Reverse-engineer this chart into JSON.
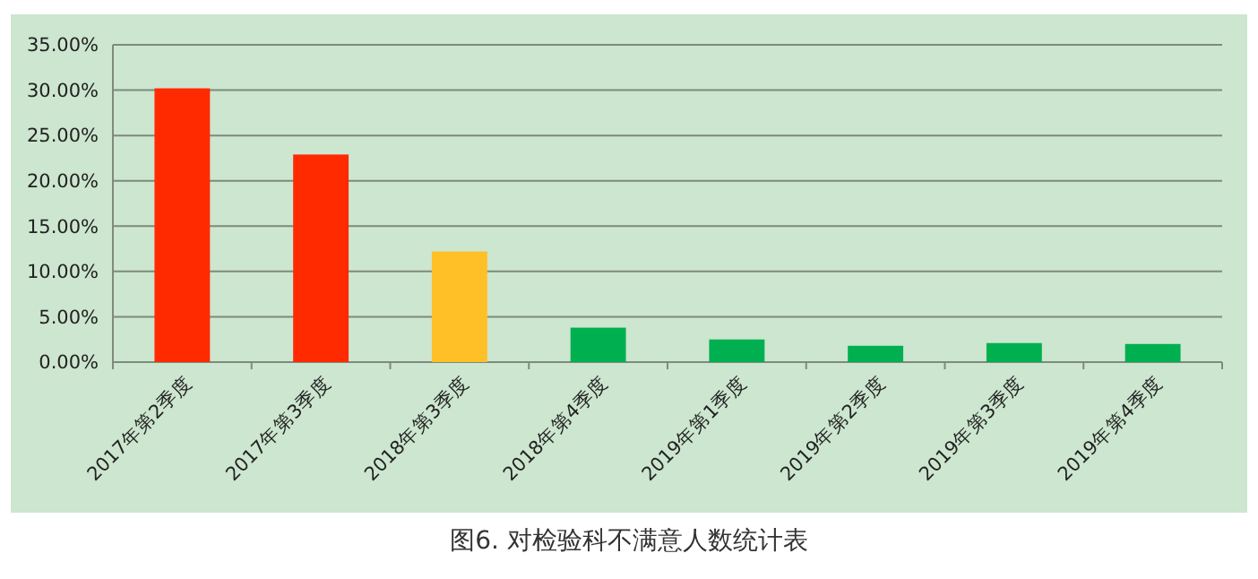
{
  "chart_data": {
    "type": "bar",
    "title": "图6. 对检验科不满意人数统计表",
    "categories": [
      "2017年第2季度",
      "2017年第3季度",
      "2018年第3季度",
      "2018年第4季度",
      "2019年第1季度",
      "2019年第2季度",
      "2019年第3季度",
      "2019年第4季度"
    ],
    "values": [
      30.2,
      22.9,
      12.2,
      3.8,
      2.5,
      1.8,
      2.1,
      2.0
    ],
    "colors": [
      "#ff2a00",
      "#ff2a00",
      "#ffbf27",
      "#00b050",
      "#00b050",
      "#00b050",
      "#00b050",
      "#00b050"
    ],
    "ylim": [
      0,
      35
    ],
    "yticks": [
      {
        "value": 0,
        "label": "0.00%"
      },
      {
        "value": 5,
        "label": "5.00%"
      },
      {
        "value": 10,
        "label": "10.00%"
      },
      {
        "value": 15,
        "label": "15.00%"
      },
      {
        "value": 20,
        "label": "20.00%"
      },
      {
        "value": 25,
        "label": "25.00%"
      },
      {
        "value": 30,
        "label": "30.00%"
      },
      {
        "value": 35,
        "label": "35.00%"
      }
    ],
    "grid": "y"
  }
}
